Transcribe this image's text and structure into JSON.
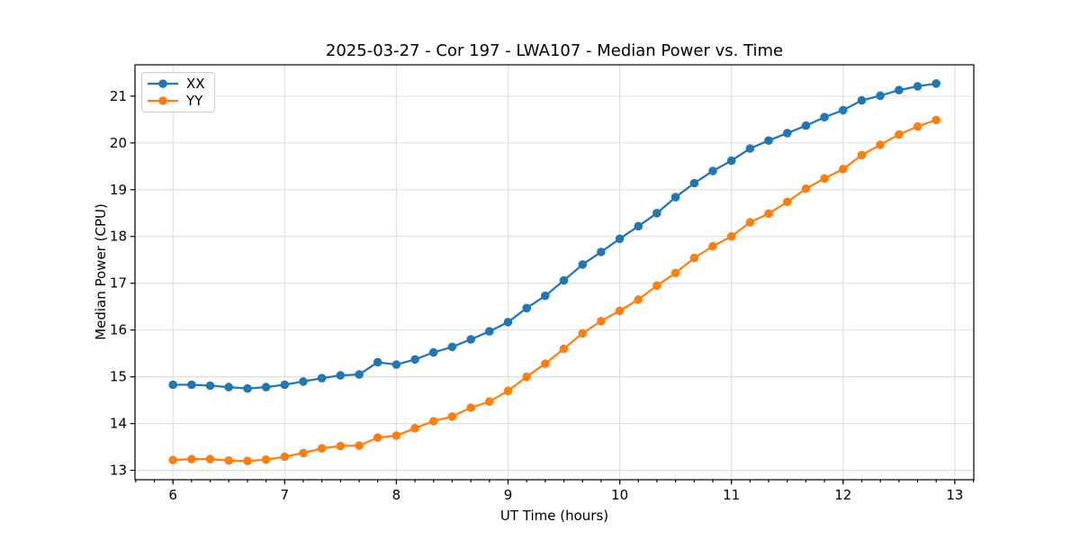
{
  "chart_data": {
    "type": "line",
    "title": "2025-03-27 - Cor 197 - LWA107 - Median Power vs. Time",
    "xlabel": "UT Time (hours)",
    "ylabel": "Median Power (CPU)",
    "xlim": [
      5.66,
      13.17
    ],
    "ylim": [
      12.8,
      21.67
    ],
    "x_ticks": [
      6,
      7,
      8,
      9,
      10,
      11,
      12,
      13
    ],
    "y_ticks": [
      13,
      14,
      15,
      16,
      17,
      18,
      19,
      20,
      21
    ],
    "x_minor_tick_step": 0.1666667,
    "grid": true,
    "grid_color": "#e0e0e0",
    "spine_color": "#000000",
    "legend_position": "upper-left",
    "x": [
      6.0,
      6.167,
      6.333,
      6.5,
      6.667,
      6.833,
      7.0,
      7.167,
      7.333,
      7.5,
      7.667,
      7.833,
      8.0,
      8.167,
      8.333,
      8.5,
      8.667,
      8.833,
      9.0,
      9.167,
      9.333,
      9.5,
      9.667,
      9.833,
      10.0,
      10.167,
      10.333,
      10.5,
      10.667,
      10.833,
      11.0,
      11.167,
      11.333,
      11.5,
      11.667,
      11.833,
      12.0,
      12.167,
      12.333,
      12.5,
      12.667,
      12.833
    ],
    "series": [
      {
        "name": "XX",
        "color": "#1f77b4",
        "marker": "circle",
        "values": [
          14.83,
          14.83,
          14.81,
          14.78,
          14.75,
          14.78,
          14.83,
          14.9,
          14.97,
          15.03,
          15.05,
          15.31,
          15.26,
          15.37,
          15.52,
          15.64,
          15.8,
          15.97,
          16.17,
          16.47,
          16.73,
          17.06,
          17.4,
          17.67,
          17.95,
          18.22,
          18.5,
          18.84,
          19.14,
          19.4,
          19.62,
          19.88,
          20.05,
          20.21,
          20.37,
          20.55,
          20.7,
          20.91,
          21.01,
          21.13,
          21.21,
          21.27
        ]
      },
      {
        "name": "YY",
        "color": "#ff7f0e",
        "marker": "circle",
        "values": [
          13.22,
          13.24,
          13.24,
          13.21,
          13.2,
          13.23,
          13.29,
          13.37,
          13.47,
          13.52,
          13.53,
          13.7,
          13.74,
          13.9,
          14.05,
          14.15,
          14.34,
          14.47,
          14.7,
          15.0,
          15.28,
          15.6,
          15.93,
          16.19,
          16.41,
          16.65,
          16.95,
          17.22,
          17.54,
          17.79,
          18.0,
          18.3,
          18.49,
          18.74,
          19.02,
          19.24,
          19.44,
          19.74,
          19.96,
          20.18,
          20.35,
          20.49
        ]
      }
    ]
  }
}
